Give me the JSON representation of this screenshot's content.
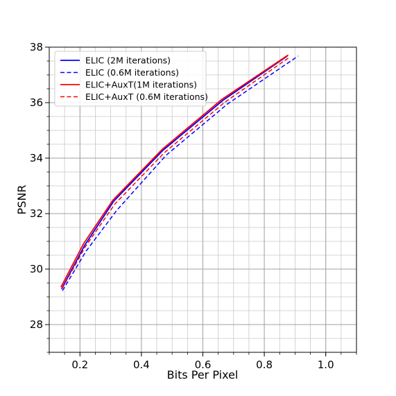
{
  "chart_data": {
    "type": "line",
    "title": "",
    "xlabel": "Bits Per Pixel",
    "ylabel": "PSNR",
    "xlim": [
      0.1,
      1.1
    ],
    "ylim": [
      27.0,
      38.0
    ],
    "x_ticks": [
      0.2,
      0.4,
      0.6,
      0.8,
      1.0
    ],
    "x_tick_labels": [
      "0.2",
      "0.4",
      "0.6",
      "0.8",
      "1.0"
    ],
    "y_ticks": [
      28,
      30,
      32,
      34,
      36,
      38
    ],
    "y_tick_labels": [
      "28",
      "30",
      "32",
      "34",
      "36",
      "38"
    ],
    "grid": true,
    "minor_grid": true,
    "legend_position": "upper-left",
    "series": [
      {
        "name": "ELIC (2M iterations)",
        "color": "#0000ff",
        "style": "solid",
        "x": [
          0.14,
          0.215,
          0.31,
          0.47,
          0.665,
          0.875
        ],
        "y": [
          29.28,
          30.85,
          32.45,
          34.28,
          36.08,
          37.68
        ]
      },
      {
        "name": "ELIC (0.6M iterations)",
        "color": "#0000ff",
        "style": "dashed",
        "x": [
          0.143,
          0.22,
          0.32,
          0.48,
          0.68,
          0.91
        ],
        "y": [
          29.22,
          30.65,
          32.12,
          34.1,
          35.95,
          37.68
        ]
      },
      {
        "name": "ELIC+AuxT(1M iterations)",
        "color": "#ff0000",
        "style": "solid",
        "x": [
          0.138,
          0.212,
          0.307,
          0.468,
          0.662,
          0.878
        ],
        "y": [
          29.35,
          30.92,
          32.48,
          34.32,
          36.12,
          37.72
        ]
      },
      {
        "name": "ELIC+AuxT (0.6M iterations)",
        "color": "#ff0000",
        "style": "dashed",
        "x": [
          0.142,
          0.217,
          0.314,
          0.475,
          0.672,
          0.88
        ],
        "y": [
          29.3,
          30.8,
          32.35,
          34.2,
          36.02,
          37.62
        ]
      }
    ]
  }
}
